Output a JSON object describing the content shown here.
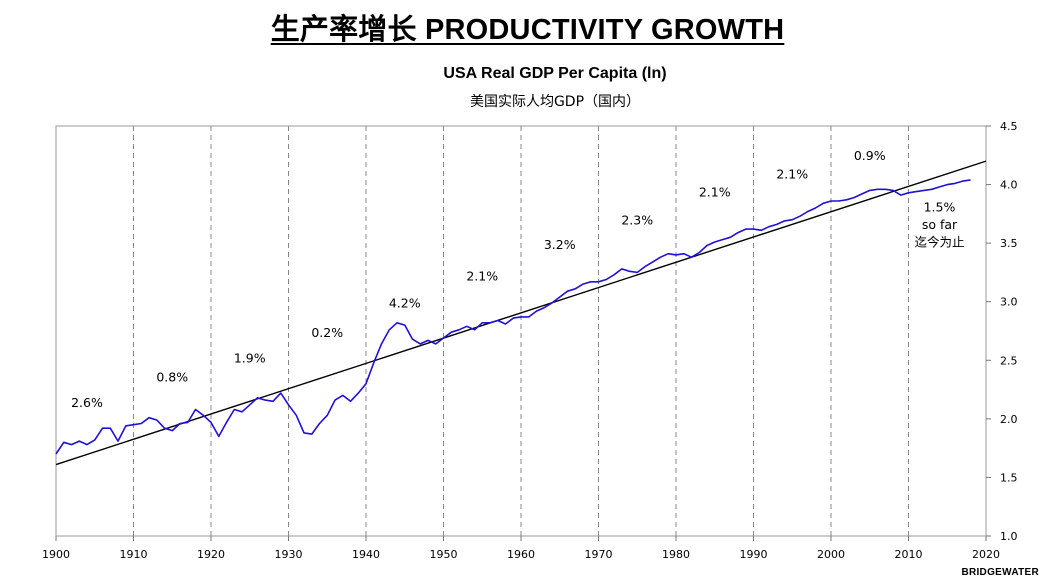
{
  "page": {
    "main_title": "生产率增长  PRODUCTIVITY GROWTH",
    "brand": "BRIDGEWATER"
  },
  "colors": {
    "series": "#2010d8",
    "trend": "#000000",
    "grid": "#888888"
  },
  "chart_data": {
    "type": "line",
    "title": "USA Real GDP Per Capita (ln)",
    "subtitle": "美国实际人均GDP（国内）",
    "xlabel": "",
    "ylabel": "",
    "xlim": [
      1900,
      2020
    ],
    "ylim": [
      1.0,
      4.5
    ],
    "x_ticks": [
      1900,
      1910,
      1920,
      1930,
      1940,
      1950,
      1960,
      1970,
      1980,
      1990,
      2000,
      2010,
      2020
    ],
    "y_ticks": [
      "1.0",
      "1.5",
      "2.0",
      "2.5",
      "3.0",
      "3.5",
      "4.0",
      "4.5"
    ],
    "y_axis_side": "right",
    "vertical_dashed_lines": [
      1910,
      1920,
      1930,
      1940,
      1950,
      1960,
      1970,
      1980,
      1990,
      2000,
      2010
    ],
    "series": [
      {
        "name": "USA Real GDP Per Capita (ln)",
        "points": [
          [
            1900,
            1.7
          ],
          [
            1901,
            1.8
          ],
          [
            1902,
            1.78
          ],
          [
            1903,
            1.81
          ],
          [
            1904,
            1.78
          ],
          [
            1905,
            1.82
          ],
          [
            1906,
            1.92
          ],
          [
            1907,
            1.92
          ],
          [
            1908,
            1.81
          ],
          [
            1909,
            1.94
          ],
          [
            1910,
            1.95
          ],
          [
            1911,
            1.96
          ],
          [
            1912,
            2.01
          ],
          [
            1913,
            1.99
          ],
          [
            1914,
            1.92
          ],
          [
            1915,
            1.9
          ],
          [
            1916,
            1.96
          ],
          [
            1917,
            1.97
          ],
          [
            1918,
            2.08
          ],
          [
            1919,
            2.03
          ],
          [
            1920,
            1.97
          ],
          [
            1921,
            1.85
          ],
          [
            1922,
            1.97
          ],
          [
            1923,
            2.08
          ],
          [
            1924,
            2.06
          ],
          [
            1925,
            2.12
          ],
          [
            1926,
            2.18
          ],
          [
            1927,
            2.16
          ],
          [
            1928,
            2.15
          ],
          [
            1929,
            2.22
          ],
          [
            1930,
            2.12
          ],
          [
            1931,
            2.03
          ],
          [
            1932,
            1.88
          ],
          [
            1933,
            1.87
          ],
          [
            1934,
            1.96
          ],
          [
            1935,
            2.03
          ],
          [
            1936,
            2.16
          ],
          [
            1937,
            2.2
          ],
          [
            1938,
            2.15
          ],
          [
            1939,
            2.22
          ],
          [
            1940,
            2.3
          ],
          [
            1941,
            2.48
          ],
          [
            1942,
            2.64
          ],
          [
            1943,
            2.76
          ],
          [
            1944,
            2.82
          ],
          [
            1945,
            2.8
          ],
          [
            1946,
            2.68
          ],
          [
            1947,
            2.64
          ],
          [
            1948,
            2.67
          ],
          [
            1949,
            2.64
          ],
          [
            1950,
            2.69
          ],
          [
            1951,
            2.74
          ],
          [
            1952,
            2.76
          ],
          [
            1953,
            2.79
          ],
          [
            1954,
            2.76
          ],
          [
            1955,
            2.82
          ],
          [
            1956,
            2.82
          ],
          [
            1957,
            2.84
          ],
          [
            1958,
            2.81
          ],
          [
            1959,
            2.86
          ],
          [
            1960,
            2.87
          ],
          [
            1961,
            2.87
          ],
          [
            1962,
            2.92
          ],
          [
            1963,
            2.95
          ],
          [
            1964,
            2.99
          ],
          [
            1965,
            3.04
          ],
          [
            1966,
            3.09
          ],
          [
            1967,
            3.11
          ],
          [
            1968,
            3.15
          ],
          [
            1969,
            3.17
          ],
          [
            1970,
            3.17
          ],
          [
            1971,
            3.19
          ],
          [
            1972,
            3.23
          ],
          [
            1973,
            3.28
          ],
          [
            1974,
            3.26
          ],
          [
            1975,
            3.25
          ],
          [
            1976,
            3.3
          ],
          [
            1977,
            3.34
          ],
          [
            1978,
            3.38
          ],
          [
            1979,
            3.41
          ],
          [
            1980,
            3.4
          ],
          [
            1981,
            3.41
          ],
          [
            1982,
            3.38
          ],
          [
            1983,
            3.42
          ],
          [
            1984,
            3.48
          ],
          [
            1985,
            3.51
          ],
          [
            1986,
            3.53
          ],
          [
            1987,
            3.55
          ],
          [
            1988,
            3.59
          ],
          [
            1989,
            3.62
          ],
          [
            1990,
            3.62
          ],
          [
            1991,
            3.61
          ],
          [
            1992,
            3.64
          ],
          [
            1993,
            3.66
          ],
          [
            1994,
            3.69
          ],
          [
            1995,
            3.7
          ],
          [
            1996,
            3.73
          ],
          [
            1997,
            3.77
          ],
          [
            1998,
            3.8
          ],
          [
            1999,
            3.84
          ],
          [
            2000,
            3.86
          ],
          [
            2001,
            3.86
          ],
          [
            2002,
            3.87
          ],
          [
            2003,
            3.89
          ],
          [
            2004,
            3.92
          ],
          [
            2005,
            3.95
          ],
          [
            2006,
            3.96
          ],
          [
            2007,
            3.96
          ],
          [
            2008,
            3.95
          ],
          [
            2009,
            3.91
          ],
          [
            2010,
            3.93
          ],
          [
            2011,
            3.94
          ],
          [
            2012,
            3.95
          ],
          [
            2013,
            3.96
          ],
          [
            2014,
            3.98
          ],
          [
            2015,
            4.0
          ],
          [
            2016,
            4.01
          ],
          [
            2017,
            4.03
          ],
          [
            2018,
            4.04
          ]
        ]
      },
      {
        "name": "trend",
        "points": [
          [
            1900,
            1.61
          ],
          [
            2020,
            4.2
          ]
        ]
      }
    ],
    "annotations": [
      {
        "x": 1904,
        "y": 2.1,
        "text": "2.6%"
      },
      {
        "x": 1915,
        "y": 2.32,
        "text": "0.8%"
      },
      {
        "x": 1925,
        "y": 2.48,
        "text": "1.9%"
      },
      {
        "x": 1935,
        "y": 2.7,
        "text": "0.2%"
      },
      {
        "x": 1945,
        "y": 2.95,
        "text": "4.2%"
      },
      {
        "x": 1955,
        "y": 3.18,
        "text": "2.1%"
      },
      {
        "x": 1965,
        "y": 3.45,
        "text": "3.2%"
      },
      {
        "x": 1975,
        "y": 3.66,
        "text": "2.3%"
      },
      {
        "x": 1985,
        "y": 3.9,
        "text": "2.1%"
      },
      {
        "x": 1995,
        "y": 4.05,
        "text": "2.1%"
      },
      {
        "x": 2005,
        "y": 4.21,
        "text": "0.9%"
      },
      {
        "x": 2014,
        "y": 3.77,
        "text": "1.5%"
      },
      {
        "x": 2014,
        "y": 3.62,
        "text": "so far"
      },
      {
        "x": 2014,
        "y": 3.47,
        "text": "迄今为止"
      }
    ]
  }
}
